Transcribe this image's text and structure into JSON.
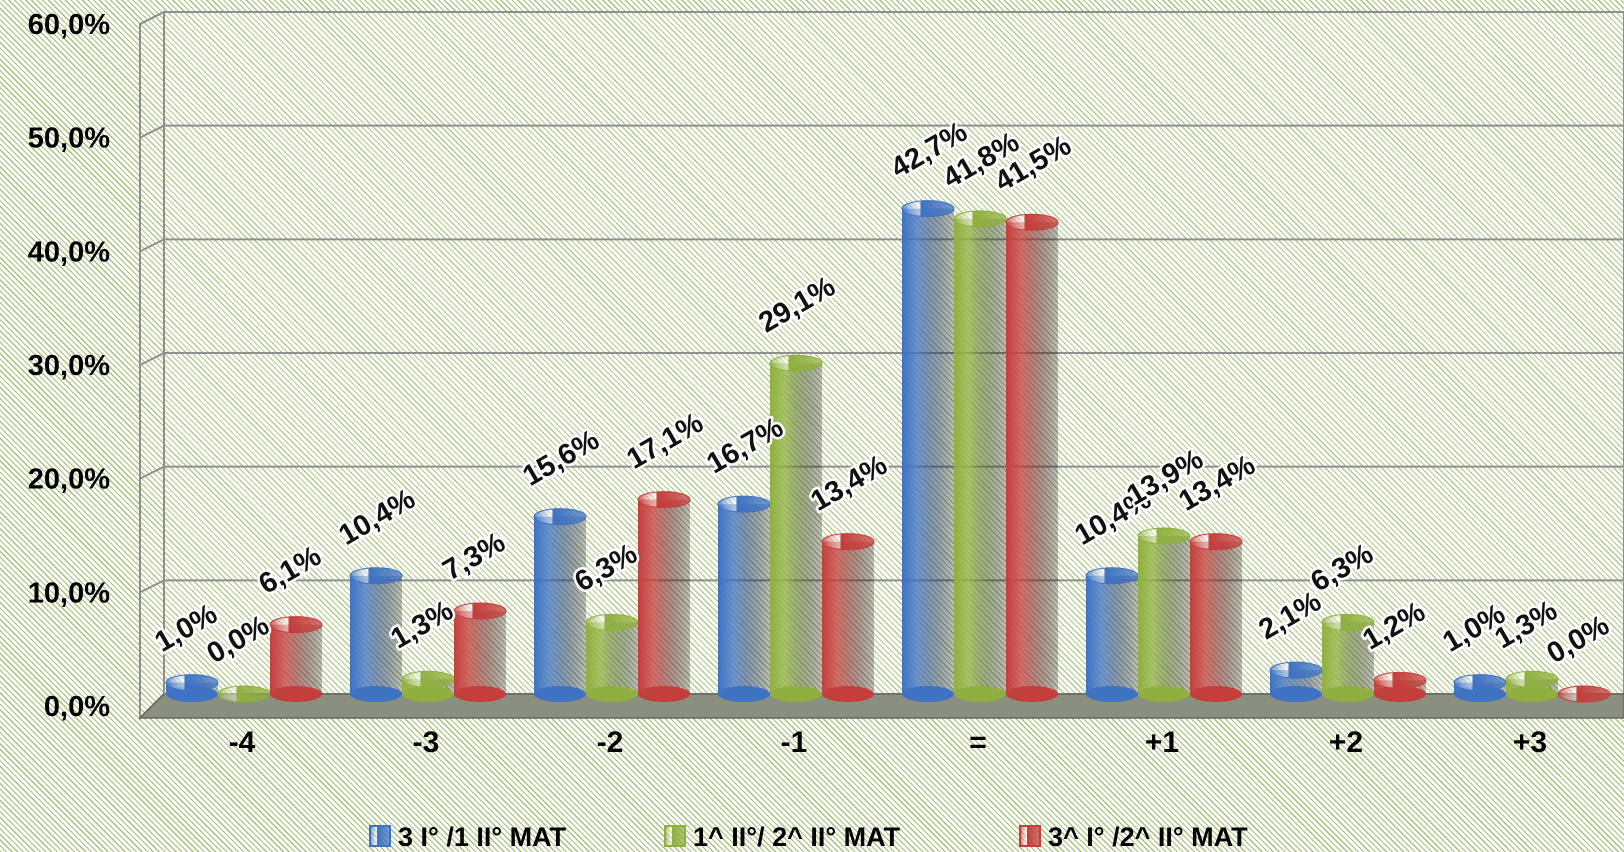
{
  "chart_data": {
    "type": "bar",
    "categories": [
      "-4",
      "-3",
      "-2",
      "-1",
      "=",
      "+1",
      "+2",
      "+3"
    ],
    "series": [
      {
        "name": "3 I° /1 II° MAT",
        "color": "#3f72c2",
        "values": [
          1.0,
          10.4,
          15.6,
          16.7,
          42.7,
          10.4,
          2.1,
          1.0
        ],
        "labels": [
          "1,0%",
          "10,4%",
          "15,6%",
          "16,7%",
          "42,7%",
          "10,4%",
          "2,1%",
          "1,0%"
        ]
      },
      {
        "name": "1^  II°/ 2^ II° MAT",
        "color": "#8fb03f",
        "values": [
          0.0,
          1.3,
          6.3,
          29.1,
          41.8,
          13.9,
          6.3,
          1.3
        ],
        "labels": [
          "0,0%",
          "1,3%",
          "6,3%",
          "29,1%",
          "41,8%",
          "13,9%",
          "6,3%",
          "1,3%"
        ]
      },
      {
        "name": "3^ I° /2^ II° MAT",
        "color": "#c43e3b",
        "values": [
          6.1,
          7.3,
          17.1,
          13.4,
          41.5,
          13.4,
          1.2,
          0.0
        ],
        "labels": [
          "6,1%",
          "7,3%",
          "17,1%",
          "13,4%",
          "41,5%",
          "13,4%",
          "1,2%",
          "0,0%"
        ]
      }
    ],
    "y_ticks": [
      "0,0%",
      "10,0%",
      "20,0%",
      "30,0%",
      "40,0%",
      "50,0%",
      "60,0%"
    ],
    "ylim": [
      0,
      60
    ],
    "grid": true,
    "legend_position": "bottom"
  }
}
